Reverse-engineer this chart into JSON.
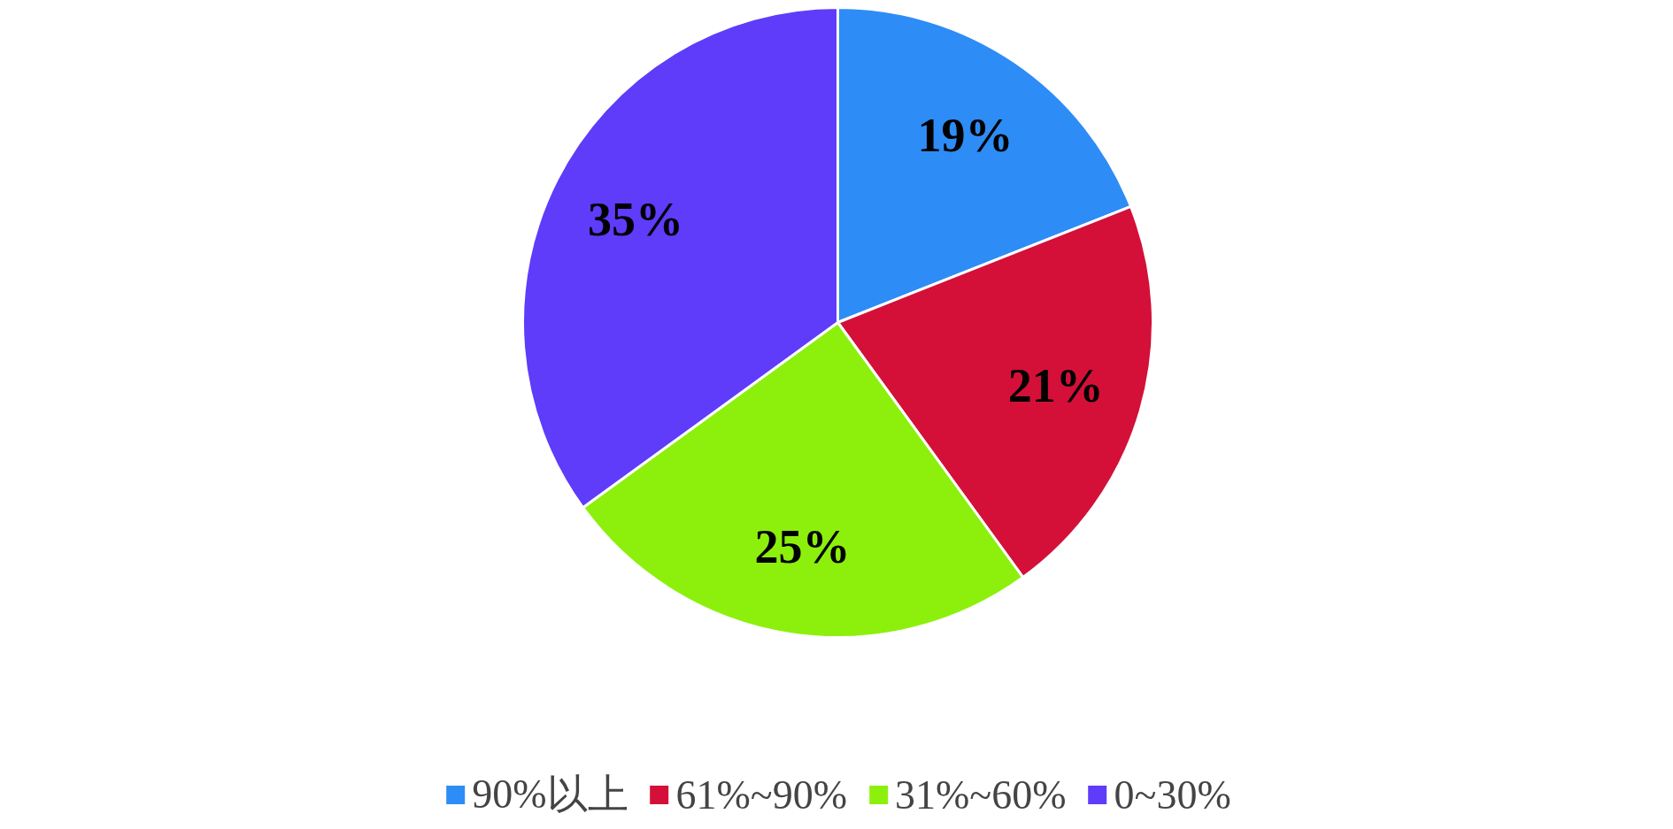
{
  "chart_data": {
    "type": "pie",
    "categories": [
      "90%以上",
      "61%~90%",
      "31%~60%",
      "0~30%"
    ],
    "values": [
      19,
      21,
      25,
      35
    ],
    "colors": [
      "#2e8cf6",
      "#d41038",
      "#8cf00c",
      "#5e3cfa"
    ],
    "value_labels": [
      "19%",
      "21%",
      "25%",
      "35%"
    ],
    "legend": "bottom"
  }
}
